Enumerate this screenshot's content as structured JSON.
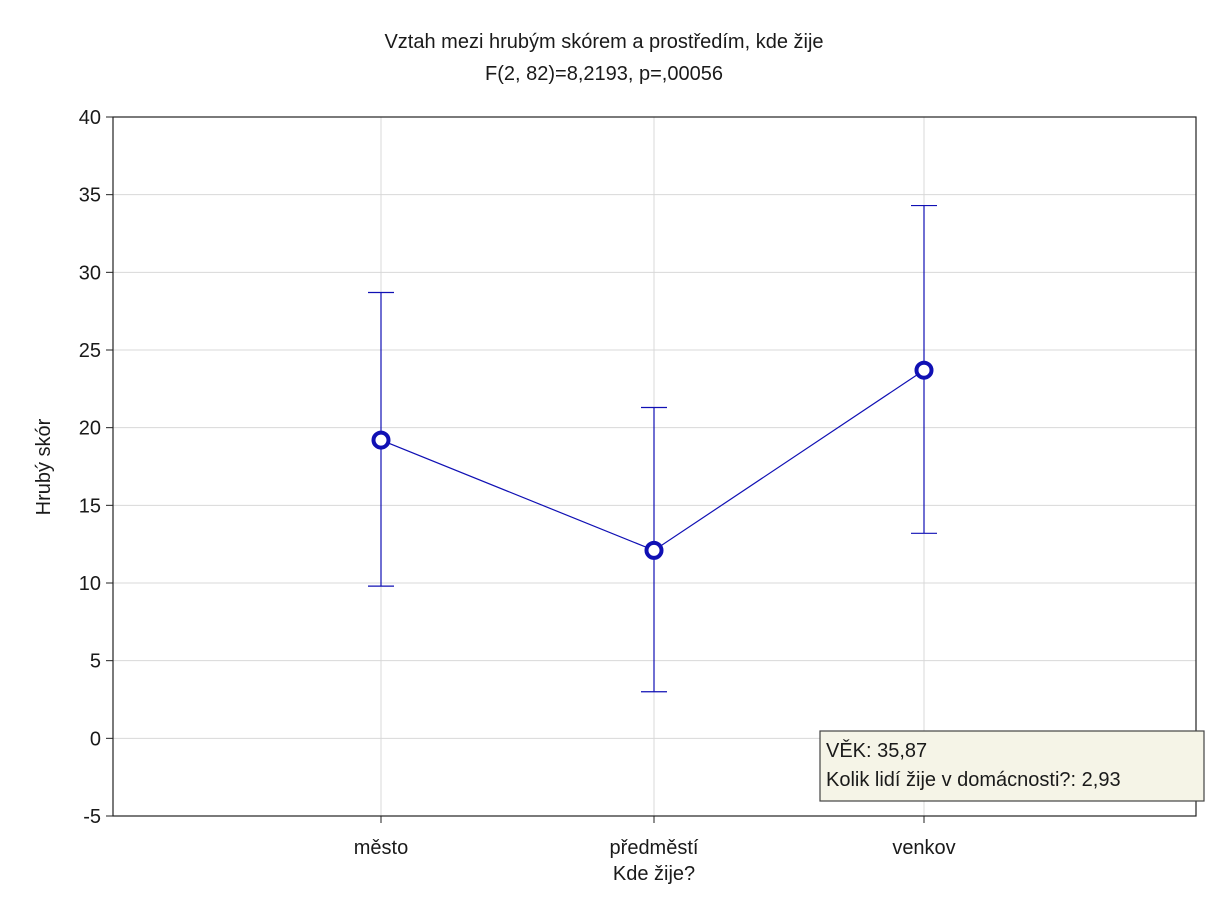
{
  "chart_data": {
    "type": "line",
    "title": "Vztah mezi hrubým skórem a prostředím, kde žije",
    "subtitle": "F(2, 82)=8,2193, p=,00056",
    "xlabel": "Kde žije?",
    "ylabel": "Hrubý skór",
    "ylim": [
      -5,
      40
    ],
    "yticks": [
      -5,
      0,
      5,
      10,
      15,
      20,
      25,
      30,
      35,
      40
    ],
    "ytick_labels": [
      "-5",
      "0",
      "5",
      "10",
      "15",
      "20",
      "25",
      "30",
      "35",
      "40"
    ],
    "categories": [
      "město",
      "předměstí",
      "venkov"
    ],
    "series": [
      {
        "values": [
          19.2,
          12.1,
          23.7
        ],
        "lower": [
          9.8,
          3.0,
          13.2
        ],
        "upper": [
          28.7,
          21.3,
          34.3
        ]
      }
    ],
    "grid": true,
    "annotation": {
      "lines": [
        "VĚK: 35,87",
        "Kolik lidí žije v domácnosti?: 2,93"
      ]
    },
    "colors": {
      "series": "#1010b4",
      "grid": "#d8d8d8",
      "annotation_bg": "#f5f4e7"
    }
  }
}
